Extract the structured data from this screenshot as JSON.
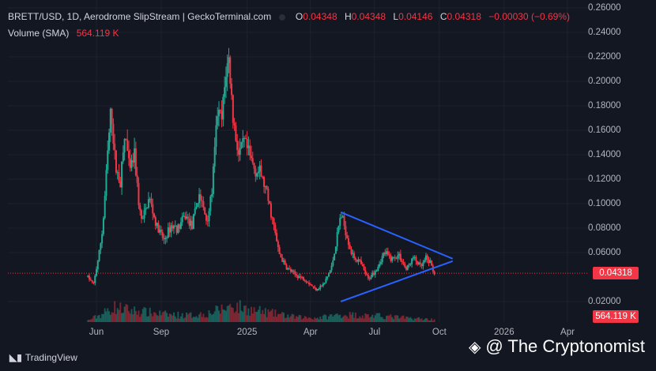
{
  "header": {
    "pair": "BRETT/USD, 1D, Aerodrome SlipStream | GeckoTerminal.com",
    "o_label": "O",
    "o_value": "0.04348",
    "h_label": "H",
    "h_value": "0.04348",
    "l_label": "L",
    "l_value": "0.04146",
    "c_label": "C",
    "c_value": "0.04318",
    "change": "−0.00030 (−0.69%)",
    "volume_label": "Volume (SMA)",
    "volume_value": "564.119 K"
  },
  "price_tag": "0.04318",
  "volume_tag": "564.119 K",
  "footer": {
    "brand": "TradingView",
    "watermark": "@ The Cryptonomist"
  },
  "colors": {
    "up": "#22ab94",
    "down": "#f23645",
    "trend": "#2962ff",
    "bg": "#131722"
  },
  "chart_data": {
    "type": "candlestick",
    "y_ticks": [
      "0.26000",
      "0.24000",
      "0.22000",
      "0.20000",
      "0.18000",
      "0.16000",
      "0.14000",
      "0.12000",
      "0.10000",
      "0.08000",
      "0.06000",
      "0.02000"
    ],
    "y_tick_values": [
      0.26,
      0.24,
      0.22,
      0.2,
      0.18,
      0.16,
      0.14,
      0.12,
      0.1,
      0.08,
      0.06,
      0.02
    ],
    "ylim": [
      0.0,
      0.26
    ],
    "x_ticks": [
      "Jun",
      "Sep",
      "2025",
      "Apr",
      "Jul",
      "Oct",
      "2026",
      "Apr"
    ],
    "x_tick_dates": [
      "2024-06-01",
      "2024-09-01",
      "2025-01-01",
      "2025-04-01",
      "2025-07-01",
      "2025-10-01",
      "2026-01-01",
      "2026-04-01"
    ],
    "last_close": 0.04318,
    "price_path": [
      [
        "2024-05-20",
        0.04
      ],
      [
        "2024-05-28",
        0.034
      ],
      [
        "2024-06-05",
        0.06
      ],
      [
        "2024-06-10",
        0.08
      ],
      [
        "2024-06-18",
        0.15
      ],
      [
        "2024-06-22",
        0.178
      ],
      [
        "2024-06-28",
        0.13
      ],
      [
        "2024-07-05",
        0.118
      ],
      [
        "2024-07-12",
        0.158
      ],
      [
        "2024-07-18",
        0.125
      ],
      [
        "2024-07-25",
        0.14
      ],
      [
        "2024-08-01",
        0.095
      ],
      [
        "2024-08-05",
        0.085
      ],
      [
        "2024-08-15",
        0.105
      ],
      [
        "2024-08-25",
        0.082
      ],
      [
        "2024-09-05",
        0.07
      ],
      [
        "2024-09-15",
        0.082
      ],
      [
        "2024-09-25",
        0.08
      ],
      [
        "2024-10-05",
        0.09
      ],
      [
        "2024-10-15",
        0.082
      ],
      [
        "2024-10-25",
        0.108
      ],
      [
        "2024-11-05",
        0.085
      ],
      [
        "2024-11-12",
        0.11
      ],
      [
        "2024-11-20",
        0.175
      ],
      [
        "2024-11-26",
        0.168
      ],
      [
        "2024-12-02",
        0.208
      ],
      [
        "2024-12-06",
        0.218
      ],
      [
        "2024-12-12",
        0.17
      ],
      [
        "2024-12-20",
        0.14
      ],
      [
        "2024-12-28",
        0.15
      ],
      [
        "2025-01-05",
        0.138
      ],
      [
        "2025-01-12",
        0.128
      ],
      [
        "2025-01-20",
        0.125
      ],
      [
        "2025-01-28",
        0.11
      ],
      [
        "2025-02-05",
        0.09
      ],
      [
        "2025-02-15",
        0.06
      ],
      [
        "2025-02-25",
        0.048
      ],
      [
        "2025-03-10",
        0.042
      ],
      [
        "2025-03-25",
        0.038
      ],
      [
        "2025-04-08",
        0.03
      ],
      [
        "2025-04-20",
        0.034
      ],
      [
        "2025-05-01",
        0.048
      ],
      [
        "2025-05-08",
        0.07
      ],
      [
        "2025-05-14",
        0.092
      ],
      [
        "2025-05-20",
        0.08
      ],
      [
        "2025-05-30",
        0.058
      ],
      [
        "2025-06-10",
        0.052
      ],
      [
        "2025-06-22",
        0.038
      ],
      [
        "2025-07-05",
        0.048
      ],
      [
        "2025-07-15",
        0.06
      ],
      [
        "2025-07-25",
        0.055
      ],
      [
        "2025-08-05",
        0.058
      ],
      [
        "2025-08-15",
        0.046
      ],
      [
        "2025-08-25",
        0.056
      ],
      [
        "2025-09-05",
        0.048
      ],
      [
        "2025-09-12",
        0.055
      ],
      [
        "2025-09-18",
        0.052
      ],
      [
        "2025-09-24",
        0.043
      ]
    ],
    "volume_profile": [
      [
        "2024-05-20",
        2
      ],
      [
        "2024-06-10",
        10
      ],
      [
        "2024-06-25",
        18
      ],
      [
        "2024-07-20",
        14
      ],
      [
        "2024-08-10",
        12
      ],
      [
        "2024-09-10",
        9
      ],
      [
        "2024-10-10",
        8
      ],
      [
        "2024-11-05",
        10
      ],
      [
        "2024-11-28",
        16
      ],
      [
        "2024-12-10",
        20
      ],
      [
        "2025-01-10",
        14
      ],
      [
        "2025-02-10",
        10
      ],
      [
        "2025-03-10",
        6
      ],
      [
        "2025-04-10",
        5
      ],
      [
        "2025-05-15",
        9
      ],
      [
        "2025-06-15",
        8
      ],
      [
        "2025-07-15",
        7
      ],
      [
        "2025-08-15",
        5
      ],
      [
        "2025-09-24",
        3
      ]
    ],
    "trendlines": [
      {
        "from": [
          "2025-05-14",
          0.093
        ],
        "to": [
          "2025-10-20",
          0.055
        ]
      },
      {
        "from": [
          "2025-05-14",
          0.02
        ],
        "to": [
          "2025-10-20",
          0.053
        ]
      }
    ]
  }
}
